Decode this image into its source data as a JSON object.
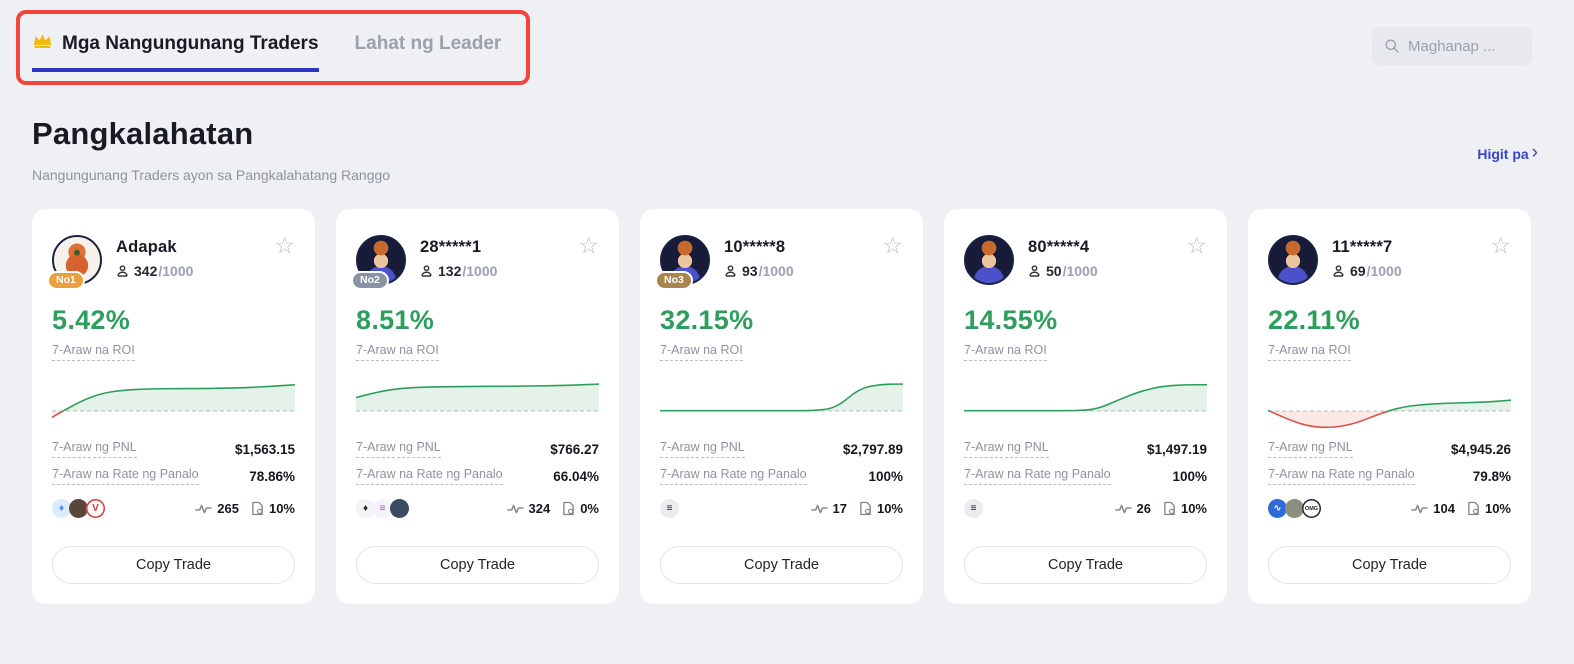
{
  "tabs": {
    "active": "Mga Nangungunang Traders",
    "inactive": "Lahat ng Leader"
  },
  "search": {
    "placeholder": "Maghanap ..."
  },
  "section": {
    "title": "Pangkalahatan",
    "subtitle": "Nangungunang Traders ayon sa Pangkalahatang Ranggo",
    "more": "Higit pa"
  },
  "labels": {
    "roi": "7-Araw na ROI",
    "pnl": "7-Araw ng PNL",
    "win": "7-Araw na Rate ng Panalo",
    "copy": "Copy Trade",
    "max_suffix": "/1000"
  },
  "colors": {
    "green": "#2f9e5c",
    "red": "#d9534f",
    "link": "#3642d2",
    "tab_underline": "#2b36c8",
    "annotation": "#f4453a",
    "gold": "#f0b90b",
    "rank": {
      "No1": "#e9a23b",
      "No2": "#8a93a6",
      "No3": "#a9854e"
    }
  },
  "cards": [
    {
      "name": "Adapak",
      "rank": "No1",
      "avatar": "robot",
      "followers": "342",
      "roi": "5.42%",
      "pnl": "$1,563.15",
      "win_rate": "78.86%",
      "trades": "265",
      "fee": "10%",
      "coins": [
        {
          "name": "sui",
          "bg": "#dbeafe",
          "color": "#4f8df7",
          "glyph": "♦"
        },
        {
          "name": "trader-token",
          "bg": "#5a4638",
          "color": "#d9c9a8",
          "glyph": ""
        },
        {
          "name": "v-token",
          "bg": "#ffffff",
          "color": "#d93a3a",
          "glyph": "V",
          "border": "#d93a3a"
        }
      ],
      "spark": [
        -0.2,
        0.25,
        0.55,
        0.66,
        0.69,
        0.7,
        0.7,
        0.71,
        0.73,
        0.77,
        0.82
      ]
    },
    {
      "name": "28*****1",
      "rank": "No2",
      "avatar": "person",
      "followers": "132",
      "roi": "8.51%",
      "pnl": "$766.27",
      "win_rate": "66.04%",
      "trades": "324",
      "fee": "0%",
      "coins": [
        {
          "name": "eth",
          "bg": "#f4f4f6",
          "color": "#2b2b2b",
          "glyph": "♦"
        },
        {
          "name": "sol",
          "bg": "#f5f2fb",
          "color": "#8458e0",
          "glyph": "≡"
        },
        {
          "name": "trader-token",
          "bg": "#3c4a63",
          "color": "#c4cede",
          "glyph": ""
        }
      ],
      "spark": [
        0.42,
        0.62,
        0.72,
        0.75,
        0.76,
        0.77,
        0.77,
        0.78,
        0.79,
        0.81,
        0.84
      ]
    },
    {
      "name": "10*****8",
      "rank": "No3",
      "avatar": "person",
      "followers": "93",
      "roi": "32.15%",
      "pnl": "$2,797.89",
      "win_rate": "100%",
      "trades": "17",
      "fee": "10%",
      "coins": [
        {
          "name": "bars-token",
          "bg": "#ececef",
          "color": "#15151a",
          "glyph": "≡"
        }
      ],
      "spark": [
        0.01,
        0.01,
        0.01,
        0.01,
        0.01,
        0.01,
        0.01,
        0.01,
        0.1,
        0.7,
        0.84,
        0.84
      ]
    },
    {
      "name": "80*****4",
      "rank": null,
      "avatar": "person",
      "followers": "50",
      "roi": "14.55%",
      "pnl": "$1,497.19",
      "win_rate": "100%",
      "trades": "26",
      "fee": "10%",
      "coins": [
        {
          "name": "bars-token",
          "bg": "#ececef",
          "color": "#15151a",
          "glyph": "≡"
        }
      ],
      "spark": [
        0.01,
        0.01,
        0.01,
        0.01,
        0.01,
        0.01,
        0.05,
        0.35,
        0.62,
        0.78,
        0.82,
        0.82
      ]
    },
    {
      "name": "11*****7",
      "rank": null,
      "avatar": "person",
      "followers": "69",
      "roi": "22.11%",
      "pnl": "$4,945.26",
      "win_rate": "79.8%",
      "trades": "104",
      "fee": "10%",
      "coins": [
        {
          "name": "wave-token",
          "bg": "#2f6bd8",
          "color": "#ffffff",
          "glyph": "∿"
        },
        {
          "name": "trader-token",
          "bg": "#8b8f7e",
          "color": "#e8e4d4",
          "glyph": ""
        },
        {
          "name": "omg-token",
          "bg": "#ffffff",
          "color": "#23262f",
          "glyph": "OMG",
          "tiny": true,
          "border": "#23262f"
        }
      ],
      "spark": [
        0.02,
        -0.3,
        -0.5,
        -0.52,
        -0.38,
        -0.1,
        0.12,
        0.2,
        0.24,
        0.26,
        0.28,
        0.34
      ]
    }
  ]
}
